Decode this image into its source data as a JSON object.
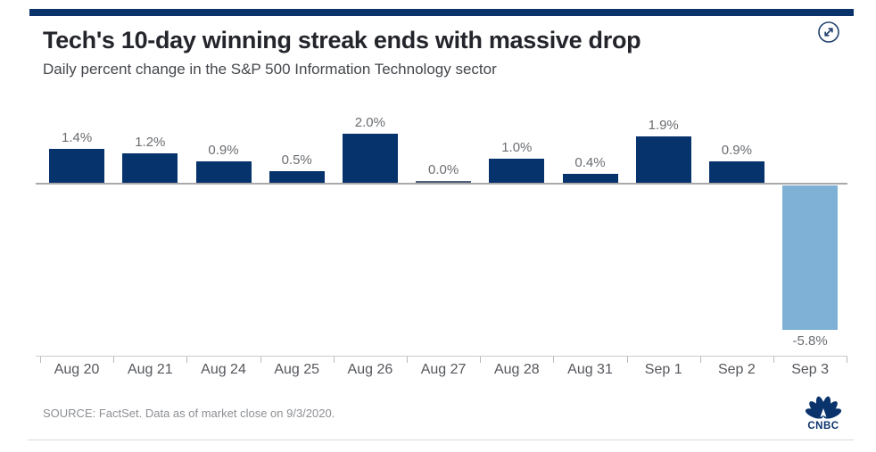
{
  "header": {
    "title": "Tech's 10-day winning streak ends with massive drop",
    "subtitle": "Daily percent change in the S&P 500 Information Technology sector"
  },
  "chart_data": {
    "type": "bar",
    "title": "Tech's 10-day winning streak ends with massive drop",
    "subtitle": "Daily percent change in the S&P 500 Information Technology sector",
    "categories": [
      "Aug 20",
      "Aug 21",
      "Aug 24",
      "Aug 25",
      "Aug 26",
      "Aug 27",
      "Aug 28",
      "Aug 31",
      "Sep 1",
      "Sep 2",
      "Sep 3"
    ],
    "values": [
      1.4,
      1.2,
      0.9,
      0.5,
      2.0,
      0.0,
      1.0,
      0.4,
      1.9,
      0.9,
      -5.8
    ],
    "value_labels": [
      "1.4%",
      "1.2%",
      "0.9%",
      "0.5%",
      "2.0%",
      "0.0%",
      "1.0%",
      "0.4%",
      "1.9%",
      "0.9%",
      "-5.8%"
    ],
    "xlabel": "",
    "ylabel": "",
    "ylim": [
      -6.9,
      2.4
    ],
    "grid": false,
    "legend": false,
    "baseline": 0,
    "colors": {
      "positive": "#07336d",
      "negative": "#7fb1d6",
      "zero_bar": "#4e5e78",
      "zero_line": "#a9a9a9"
    }
  },
  "footer": {
    "source": "SOURCE: FactSet. Data as of market close on 9/3/2020.",
    "logo": "CNBC"
  },
  "brand": {
    "accent_navy": "#0a336c"
  }
}
